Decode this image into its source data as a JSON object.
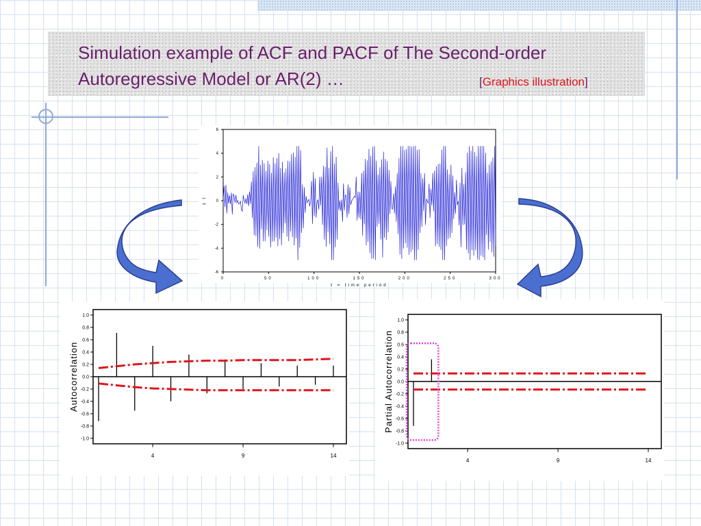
{
  "slide": {
    "title_line1": "Simulation example of ACF and PACF of The Second-order",
    "title_line2": "Autoregressive Model or AR(2)  …",
    "bracket_open": "[",
    "graphics_label": "Graphics illustration",
    "bracket_close": "]",
    "colors": {
      "title": "#6b1f6b",
      "graphics_label": "#e0141c",
      "series_line": "#1a1ad6",
      "confidence_band": "#e0141c",
      "highlight_box": "#e040e0",
      "arrow": "#4a6fd0"
    },
    "icons": [
      "curved-arrow-left-icon",
      "curved-arrow-right-icon"
    ]
  },
  "chart_data": [
    {
      "type": "line",
      "xlabel": "t = time period",
      "ylabel": "z t",
      "xlim": [
        0,
        300
      ],
      "ylim": [
        -6,
        6
      ],
      "xticks": [
        0,
        50,
        100,
        150,
        200,
        250,
        300
      ],
      "yticks": [
        -6,
        -4,
        -2,
        0,
        2,
        4,
        6
      ],
      "n_points": 300,
      "series": [
        {
          "values_description_range": [
            -5.0,
            4.6
          ]
        }
      ]
    },
    {
      "type": "bar",
      "title": "",
      "ylabel": "Autocorrelation",
      "xlim": [
        1,
        14
      ],
      "ylim": [
        -1.0,
        1.0
      ],
      "xticks": [
        4,
        9,
        14
      ],
      "yticks": [
        1.0,
        0.8,
        0.6,
        0.4,
        0.2,
        0.0,
        -0.2,
        -0.4,
        -0.6,
        -0.8,
        -1.0
      ],
      "yticklabels": [
        "1.0",
        "0.8",
        "0.6",
        "0.4",
        "0.2",
        "0.0",
        "-0.2",
        "-0.4",
        "-0.6",
        "-0.8",
        "-1.0"
      ],
      "lags": [
        1,
        2,
        3,
        4,
        5,
        6,
        7,
        8,
        9,
        10,
        11,
        12,
        13,
        14
      ],
      "values": [
        -0.72,
        0.71,
        -0.55,
        0.5,
        -0.4,
        0.36,
        -0.27,
        0.28,
        -0.2,
        0.22,
        -0.16,
        0.18,
        -0.13,
        0.18
      ],
      "upper_limit": [
        0.14,
        0.17,
        0.2,
        0.22,
        0.24,
        0.25,
        0.26,
        0.26,
        0.27,
        0.27,
        0.27,
        0.27,
        0.28,
        0.29
      ],
      "lower_limit": [
        -0.11,
        -0.14,
        -0.17,
        -0.19,
        -0.2,
        -0.21,
        -0.22,
        -0.22,
        -0.22,
        -0.22,
        -0.22,
        -0.22,
        -0.22,
        -0.22
      ]
    },
    {
      "type": "bar",
      "title": "",
      "ylabel": "Partial Autocorrelation",
      "xlim": [
        1,
        14
      ],
      "ylim": [
        -1.0,
        1.0
      ],
      "xticks": [
        4,
        9,
        14
      ],
      "yticks": [
        1.0,
        0.8,
        0.6,
        0.4,
        0.2,
        0.0,
        -0.2,
        -0.4,
        -0.6,
        -0.8,
        -1.0
      ],
      "yticklabels": [
        "1.0",
        "0.8",
        "0.6",
        "0.4",
        "0.2",
        "0.0",
        "-0.2",
        "-0.4",
        "-0.6",
        "-0.8",
        "-1.0"
      ],
      "lags": [
        1,
        2,
        3,
        4,
        5,
        6,
        7,
        8,
        9,
        10,
        11,
        12,
        13,
        14
      ],
      "values": [
        -0.72,
        0.36,
        0,
        0,
        0,
        0,
        0,
        0,
        0,
        0,
        0,
        0,
        0,
        0
      ],
      "upper_limit": [
        0.13,
        0.13,
        0.13,
        0.13,
        0.13,
        0.13,
        0.13,
        0.13,
        0.13,
        0.13,
        0.13,
        0.13,
        0.13,
        0.13
      ],
      "lower_limit": [
        -0.13,
        -0.13,
        -0.13,
        -0.13,
        -0.13,
        -0.13,
        -0.13,
        -0.13,
        -0.13,
        -0.13,
        -0.13,
        -0.13,
        -0.13,
        -0.13
      ],
      "highlight_lags": [
        1,
        2
      ]
    }
  ]
}
